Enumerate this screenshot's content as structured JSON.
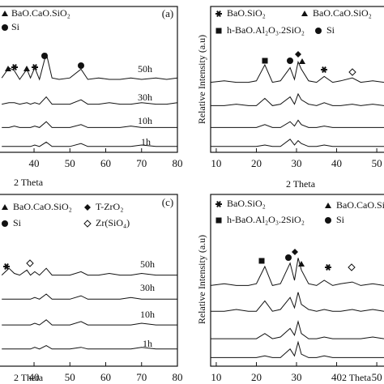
{
  "chart_data": [
    {
      "type": "line",
      "panel_label": "(a)",
      "x_label": "2 Theta",
      "legend": [
        "BaO.CaO.SiO₂",
        "Si"
      ],
      "xlim": [
        30.5,
        80
      ],
      "ylim": [
        0,
        100
      ],
      "xticks": [
        40,
        50,
        60,
        70,
        80
      ],
      "x": [
        31,
        33,
        34.5,
        36,
        38,
        39,
        40.2,
        41.5,
        43.4,
        45,
        47,
        50,
        53.1,
        55,
        58,
        61,
        64,
        67,
        70,
        74,
        77,
        80
      ],
      "series": [
        {
          "name": "50h",
          "color": "#111111",
          "values": [
            51,
            58,
            56,
            50,
            57,
            51,
            58,
            50,
            68,
            51,
            50,
            51,
            57,
            50,
            51,
            50,
            50,
            51,
            50,
            51,
            50,
            51
          ]
        },
        {
          "name": "30h",
          "color": "#111111",
          "values": [
            33,
            34,
            34,
            33,
            34,
            33,
            34,
            33,
            38,
            33,
            33,
            33,
            36,
            33,
            33,
            34,
            33,
            33,
            34,
            33,
            33,
            34
          ]
        },
        {
          "name": "10h",
          "color": "#111111",
          "values": [
            17,
            17,
            18,
            17,
            17,
            17,
            18,
            17,
            21,
            17,
            17,
            17,
            19,
            17,
            17,
            17,
            17,
            18,
            17,
            17,
            17,
            17
          ]
        },
        {
          "name": "1h",
          "color": "#111111",
          "values": [
            4,
            4,
            4,
            4,
            4,
            4,
            5,
            4,
            7,
            4,
            4,
            4,
            6,
            4,
            4,
            4,
            4,
            4,
            5,
            4,
            4,
            4
          ]
        }
      ]
    },
    {
      "type": "line",
      "x_label": "2 Theta",
      "y_label": "Relative Intensity (a.u)",
      "legend": [
        "BaO.SiO₂",
        "BaO.CaO.SiO₂",
        "h-BaO.Al₂O₃.2SiO₂",
        "Si"
      ],
      "xlim": [
        8.6,
        51.8
      ],
      "ylim": [
        0,
        100
      ],
      "xticks": [
        10,
        20,
        30,
        40,
        50
      ],
      "x": [
        8.6,
        12,
        15,
        18,
        20,
        22.1,
        24,
        26,
        28.4,
        29.5,
        30.4,
        31.2,
        33,
        35,
        36.9,
        39,
        41,
        43.9,
        46,
        49,
        51.8
      ],
      "series": [
        {
          "color": "#111111",
          "values": [
            48,
            49,
            48,
            48,
            49,
            60,
            48,
            49,
            58,
            50,
            62,
            57,
            49,
            48,
            52,
            48,
            49,
            51,
            48,
            49,
            48
          ]
        },
        {
          "color": "#111111",
          "values": [
            32,
            32,
            33,
            32,
            32,
            37,
            32,
            33,
            38,
            33,
            40,
            36,
            33,
            32,
            34,
            32,
            32,
            33,
            32,
            33,
            32
          ]
        },
        {
          "color": "#111111",
          "values": [
            17,
            17,
            17,
            17,
            17,
            19,
            17,
            17,
            21,
            18,
            22,
            19,
            17,
            17,
            18,
            17,
            17,
            17,
            17,
            17,
            17
          ]
        },
        {
          "color": "#111111",
          "values": [
            4,
            4,
            4,
            4,
            4,
            5,
            4,
            4,
            9,
            5,
            8,
            6,
            4,
            4,
            5,
            4,
            4,
            4,
            4,
            4,
            4
          ]
        }
      ]
    },
    {
      "type": "line",
      "panel_label": "(c)",
      "x_label": "2 Theta",
      "legend": [
        "BaO.CaO.SiO₂",
        "Si",
        "T-ZrO₂",
        "Zr(SiO₄)"
      ],
      "xlim": [
        30.5,
        80
      ],
      "ylim": [
        0,
        100
      ],
      "xticks": [
        40,
        50,
        60,
        70,
        80
      ],
      "x": [
        31,
        33,
        34.5,
        36,
        38,
        39,
        40.2,
        41.5,
        43.4,
        45,
        47,
        50,
        53.1,
        55,
        58,
        61,
        64,
        67,
        70,
        74,
        77,
        80
      ],
      "series": [
        {
          "name": "50h",
          "color": "#111111",
          "values": [
            53,
            57,
            54,
            53,
            56,
            53,
            55,
            53,
            57,
            53,
            53,
            53,
            55,
            53,
            53,
            54,
            53,
            53,
            54,
            53,
            53,
            53
          ]
        },
        {
          "name": "30h",
          "color": "#111111",
          "values": [
            39,
            39,
            39,
            39,
            39,
            39,
            40,
            39,
            42,
            39,
            39,
            39,
            41,
            39,
            39,
            39,
            39,
            40,
            39,
            39,
            39,
            39
          ]
        },
        {
          "name": "10h",
          "color": "#111111",
          "values": [
            24,
            24,
            24,
            24,
            24,
            24,
            25,
            24,
            27,
            24,
            24,
            24,
            26,
            24,
            24,
            24,
            24,
            24,
            25,
            24,
            24,
            24
          ]
        },
        {
          "name": "1h",
          "color": "#111111",
          "values": [
            10,
            10,
            10,
            10,
            10,
            10,
            11,
            10,
            12,
            10,
            10,
            10,
            11,
            10,
            10,
            10,
            10,
            10,
            11,
            10,
            10,
            10
          ]
        }
      ]
    },
    {
      "type": "line",
      "x_label": "2 Theta",
      "y_label": "Relative Intensity (a.u)",
      "legend": [
        "BaO.SiO₂",
        "BaO.CaO.SiO₂",
        "h-BaO.Al₂O₃.2SiO₂",
        "Si"
      ],
      "xlim": [
        8.6,
        51.8
      ],
      "ylim": [
        0,
        100
      ],
      "xticks": [
        10,
        20,
        30,
        40,
        50
      ],
      "x": [
        8.6,
        12,
        15,
        18,
        20,
        22.1,
        24,
        26,
        28.4,
        29.5,
        30.4,
        31.2,
        33,
        35,
        36.9,
        39,
        41,
        43.9,
        46,
        49,
        51.8
      ],
      "series": [
        {
          "color": "#111111",
          "values": [
            47,
            48,
            47,
            47,
            48,
            58,
            47,
            48,
            60,
            50,
            63,
            56,
            48,
            47,
            50,
            47,
            48,
            49,
            47,
            48,
            47
          ]
        },
        {
          "color": "#111111",
          "values": [
            32,
            32,
            33,
            32,
            32,
            38,
            32,
            33,
            40,
            34,
            43,
            36,
            33,
            32,
            33,
            32,
            32,
            33,
            32,
            33,
            32
          ]
        },
        {
          "color": "#111111",
          "values": [
            16,
            16,
            16,
            16,
            16,
            19,
            16,
            17,
            22,
            18,
            26,
            19,
            16,
            16,
            17,
            16,
            16,
            16,
            16,
            17,
            16
          ]
        },
        {
          "color": "#111111",
          "values": [
            5,
            5,
            5,
            5,
            5,
            6,
            5,
            5,
            10,
            6,
            14,
            7,
            5,
            5,
            6,
            5,
            5,
            5,
            5,
            5,
            5
          ]
        }
      ]
    }
  ]
}
